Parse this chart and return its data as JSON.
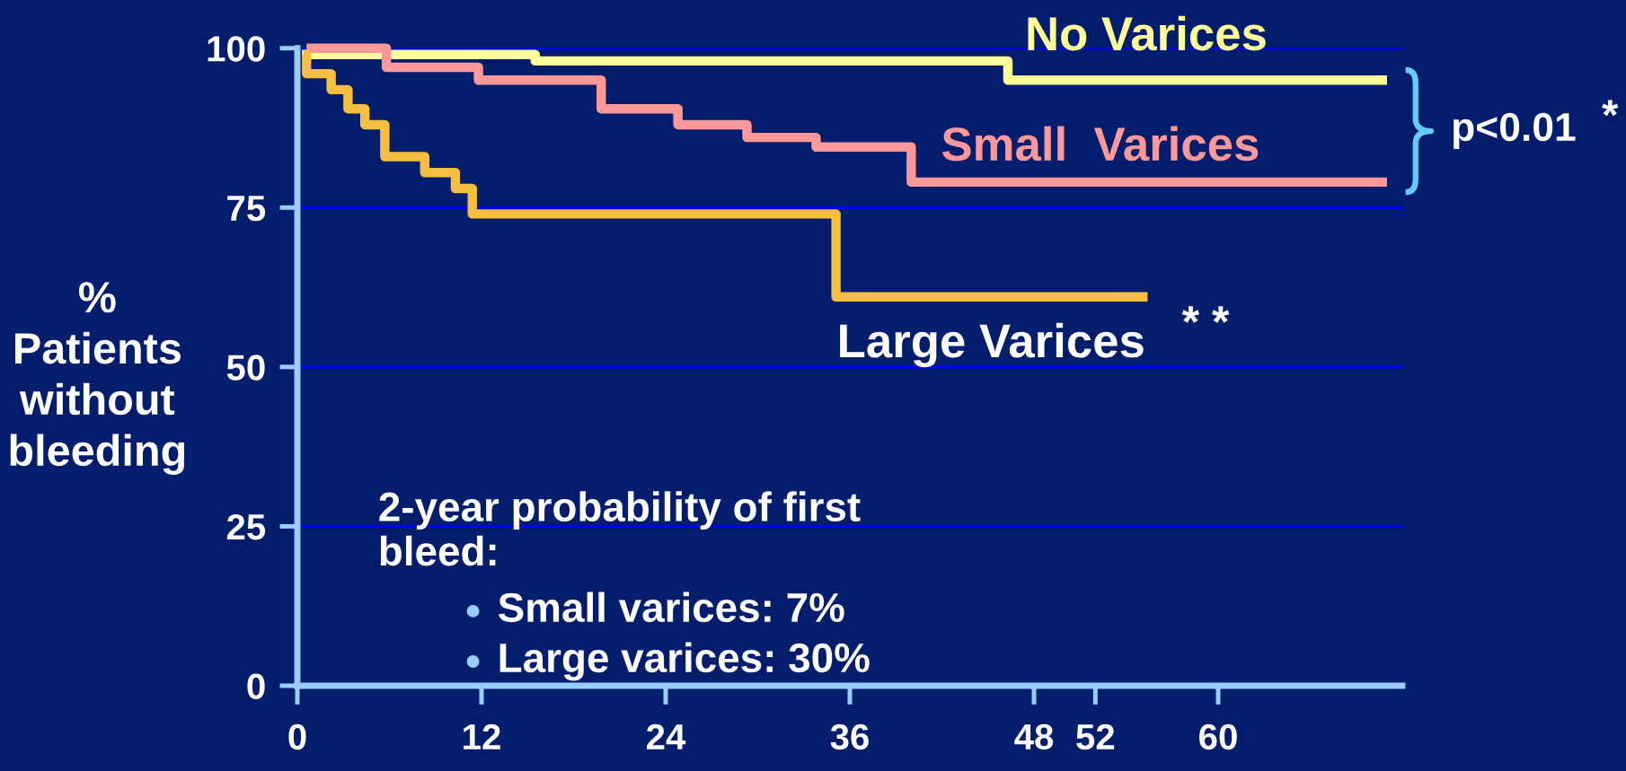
{
  "chart_data": {
    "type": "step",
    "ylabel": "%\nPatients\nwithout\nbleeding",
    "xlim": [
      0,
      72
    ],
    "ylim": [
      0,
      100
    ],
    "xticks": [
      0,
      12,
      24,
      36,
      48,
      52,
      60
    ],
    "yticks": [
      0,
      25,
      50,
      75,
      100
    ],
    "grid": "y",
    "series": [
      {
        "name": "No Varices",
        "color": "#ffff99",
        "x": [
          0.3,
          15.5,
          46.3,
          71
        ],
        "values": [
          99,
          98,
          95,
          95
        ]
      },
      {
        "name": "Small  Varices",
        "color": "#ff9999",
        "x": [
          0.6,
          5.8,
          11.8,
          19.8,
          24.8,
          29.3,
          33.8,
          40.0,
          71
        ],
        "values": [
          100,
          97,
          95,
          90.5,
          88,
          86,
          84.5,
          79,
          79
        ]
      },
      {
        "name": "Large Varices",
        "color": "#f5bf42",
        "x": [
          0.4,
          0.6,
          2.2,
          3.3,
          4.4,
          5.7,
          8.3,
          10.3,
          11.4,
          35.1,
          55.4
        ],
        "values": [
          99,
          96,
          93.5,
          90.5,
          88,
          83,
          80.5,
          78,
          74,
          61,
          61
        ]
      }
    ],
    "annotations": [
      "p<0.01",
      "*",
      "* *",
      "2-year probability of first\nbleed:",
      "Small varices: 7%",
      "Large varices: 30%"
    ]
  }
}
